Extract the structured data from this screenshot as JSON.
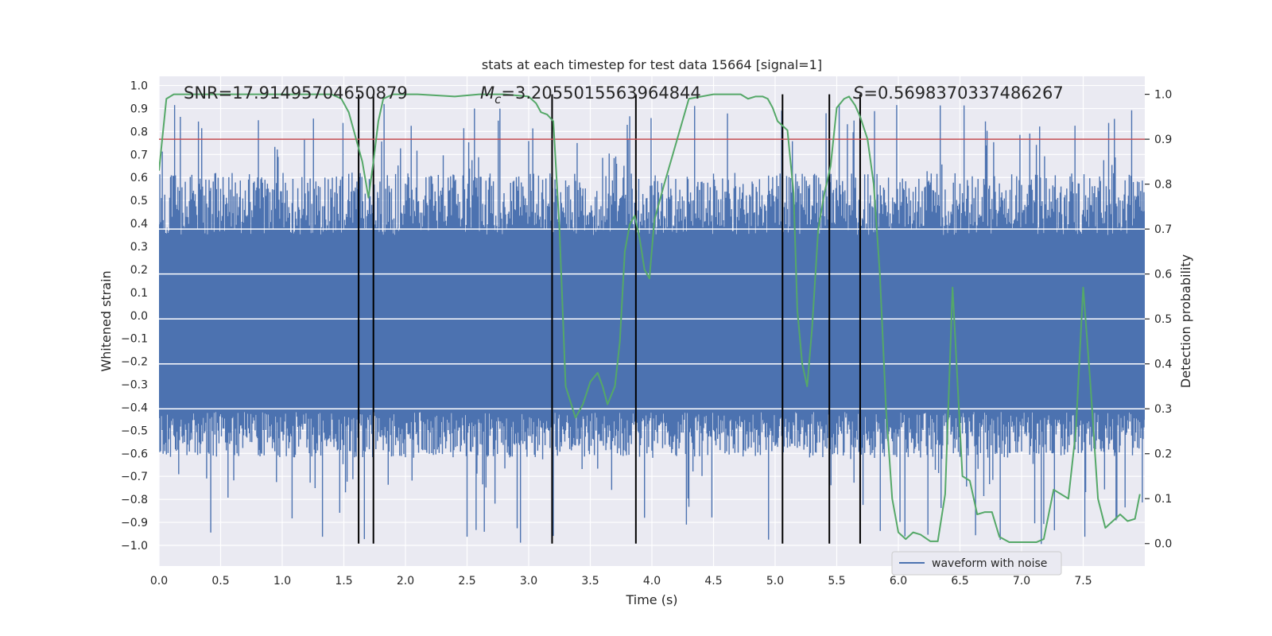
{
  "chart_data": {
    "type": "line",
    "title": "stats at each timestep for test data 15664 [signal=1]",
    "xlabel": "Time (s)",
    "ylabel_left": "Whitened strain",
    "ylabel_right": "Detection probability",
    "xlim": [
      0.0,
      8.0
    ],
    "ylim_left": [
      -1.09,
      1.04
    ],
    "ylim_right": [
      -0.05,
      1.04
    ],
    "x_ticks": [
      "0.0",
      "0.5",
      "1.0",
      "1.5",
      "2.0",
      "2.5",
      "3.0",
      "3.5",
      "4.0",
      "4.5",
      "5.0",
      "5.5",
      "6.0",
      "6.5",
      "7.0",
      "7.5"
    ],
    "y_ticks_left": [
      "1.0",
      "0.9",
      "0.8",
      "0.7",
      "0.6",
      "0.5",
      "0.4",
      "0.3",
      "0.2",
      "0.1",
      "0.0",
      "-0.1",
      "-0.2",
      "-0.3",
      "-0.4",
      "-0.5",
      "-0.6",
      "-0.7",
      "-0.8",
      "-0.9",
      "-1.0"
    ],
    "y_ticks_right": [
      "1.0",
      "0.9",
      "0.8",
      "0.7",
      "0.6",
      "0.5",
      "0.4",
      "0.3",
      "0.2",
      "0.1",
      "0.0"
    ],
    "annotations": {
      "snr": "SNR=17.91495704650879",
      "mc_symbol": "M",
      "mc_sub": "c",
      "mc_value": "=3.2055015563964844",
      "s_symbol": "S",
      "s_value": "=0.5698370337486267"
    },
    "legend": {
      "label": "waveform with noise",
      "position": "lower-right"
    },
    "colors": {
      "waveform": "#4c72b0",
      "probability": "#55a868",
      "threshold": "#c44e52",
      "boundary": "#000000",
      "axes_bg": "#eaeaf2",
      "grid": "#ffffff"
    },
    "threshold_probability": 0.9,
    "boundary_times": [
      1.62,
      1.74,
      3.19,
      3.87,
      5.06,
      5.44,
      5.69
    ],
    "waveform_envelope": {
      "core_range": [
        -0.42,
        0.35
      ],
      "typical_peak": [
        -0.62,
        0.62
      ],
      "extreme_range": [
        -1.0,
        0.92
      ]
    },
    "series": [
      {
        "name": "detection probability",
        "axis": "right",
        "x": [
          0.0,
          0.06,
          0.12,
          0.2,
          0.35,
          0.6,
          0.9,
          1.2,
          1.4,
          1.48,
          1.54,
          1.6,
          1.65,
          1.7,
          1.74,
          1.78,
          1.82,
          1.9,
          2.1,
          2.4,
          2.6,
          2.8,
          3.0,
          3.06,
          3.1,
          3.15,
          3.2,
          3.25,
          3.3,
          3.38,
          3.44,
          3.5,
          3.56,
          3.6,
          3.64,
          3.7,
          3.74,
          3.78,
          3.82,
          3.86,
          3.9,
          3.94,
          3.98,
          4.02,
          4.1,
          4.3,
          4.5,
          4.6,
          4.66,
          4.72,
          4.78,
          4.84,
          4.9,
          4.94,
          4.98,
          5.02,
          5.06,
          5.1,
          5.15,
          5.18,
          5.22,
          5.26,
          5.3,
          5.35,
          5.4,
          5.45,
          5.5,
          5.56,
          5.6,
          5.65,
          5.69,
          5.75,
          5.8,
          5.85,
          5.9,
          5.95,
          6.0,
          6.06,
          6.12,
          6.18,
          6.26,
          6.32,
          6.38,
          6.44,
          6.52,
          6.58,
          6.64,
          6.7,
          6.76,
          6.82,
          6.9,
          7.0,
          7.08,
          7.12,
          7.18,
          7.26,
          7.32,
          7.38,
          7.44,
          7.5,
          7.56,
          7.62,
          7.68,
          7.74,
          7.8,
          7.86,
          7.92,
          7.96
        ],
        "values": [
          0.83,
          0.99,
          1.0,
          1.0,
          1.0,
          1.0,
          1.0,
          1.0,
          1.0,
          0.99,
          0.96,
          0.9,
          0.85,
          0.77,
          0.85,
          0.94,
          0.99,
          1.0,
          1.0,
          0.995,
          1.0,
          1.0,
          0.995,
          0.98,
          0.96,
          0.955,
          0.94,
          0.7,
          0.35,
          0.28,
          0.31,
          0.36,
          0.38,
          0.35,
          0.31,
          0.35,
          0.45,
          0.65,
          0.71,
          0.73,
          0.68,
          0.61,
          0.59,
          0.72,
          0.8,
          0.99,
          1.0,
          1.0,
          1.0,
          1.0,
          0.99,
          0.995,
          0.995,
          0.99,
          0.97,
          0.94,
          0.93,
          0.92,
          0.78,
          0.52,
          0.4,
          0.35,
          0.48,
          0.7,
          0.78,
          0.84,
          0.97,
          0.99,
          0.995,
          0.975,
          0.95,
          0.9,
          0.8,
          0.6,
          0.3,
          0.1,
          0.025,
          0.01,
          0.025,
          0.02,
          0.005,
          0.005,
          0.11,
          0.57,
          0.15,
          0.14,
          0.065,
          0.07,
          0.07,
          0.015,
          0.003,
          0.003,
          0.003,
          0.003,
          0.01,
          0.12,
          0.11,
          0.1,
          0.25,
          0.57,
          0.35,
          0.1,
          0.035,
          0.05,
          0.065,
          0.05,
          0.055,
          0.11
        ]
      }
    ]
  }
}
